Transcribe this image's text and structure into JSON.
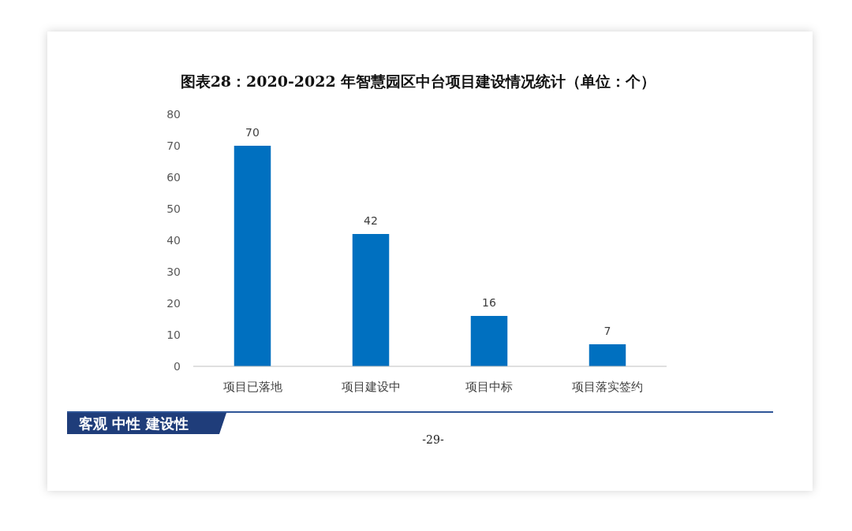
{
  "chart_data": {
    "type": "bar",
    "title": "图表28：2020-2022 年智慧园区中台项目建设情况统计（单位：个）",
    "categories": [
      "项目已落地",
      "项目建设中",
      "项目中标",
      "项目落实签约"
    ],
    "values": [
      70,
      42,
      16,
      7
    ],
    "color": "#0070c0",
    "ylim": [
      0,
      80
    ],
    "yticks": [
      0,
      10,
      20,
      30,
      40,
      50,
      60,
      70,
      80
    ],
    "grid": false,
    "data_labels": true,
    "annotations": [
      "客观 中性 建设性",
      "-29-"
    ]
  }
}
